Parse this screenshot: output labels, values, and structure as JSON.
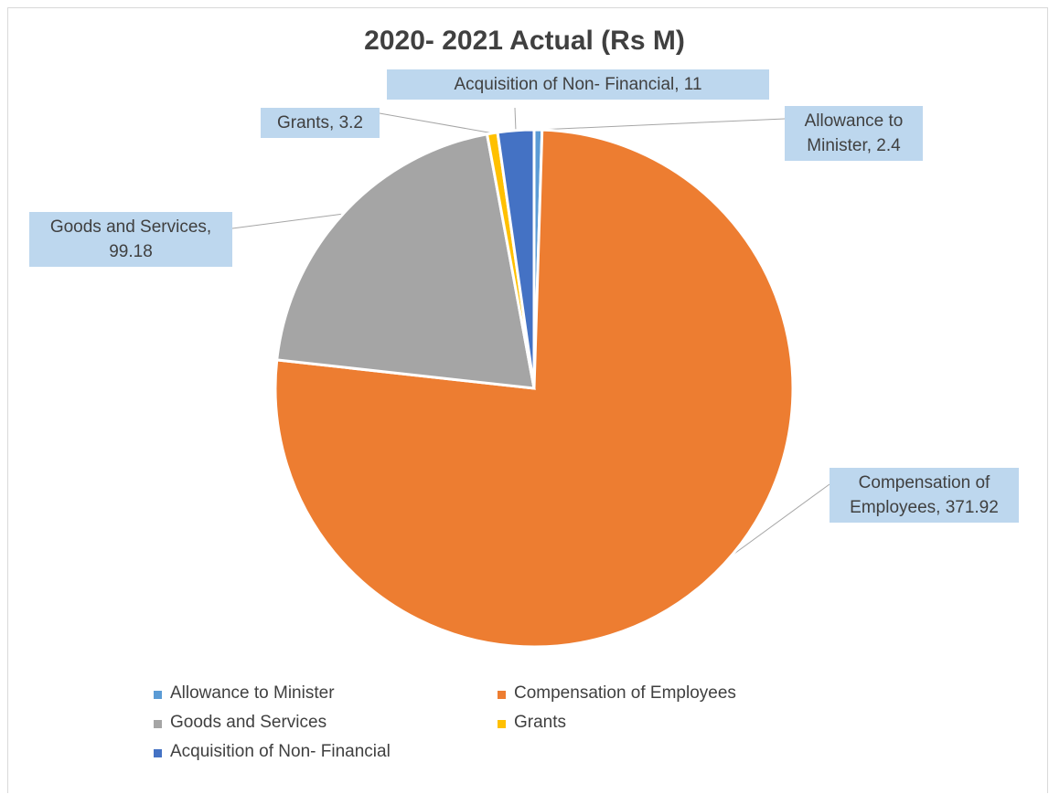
{
  "chart_data": {
    "type": "pie",
    "title": "2020- 2021 Actual (Rs M)",
    "slices": [
      {
        "name": "Allowance to Minister",
        "value": 2.4,
        "color": "#5b9bd5",
        "label": "Allowance to Minister, 2.4"
      },
      {
        "name": "Compensation of Employees",
        "value": 371.92,
        "color": "#ed7d31",
        "label": "Compensation of Employees, 371.92"
      },
      {
        "name": "Goods and Services",
        "value": 99.18,
        "color": "#a5a5a5",
        "label": "Goods and Services, 99.18"
      },
      {
        "name": "Grants",
        "value": 3.2,
        "color": "#ffc000",
        "label": "Grants, 3.2"
      },
      {
        "name": "Acquisition of Non- Financial",
        "value": 11,
        "color": "#4472c4",
        "label": "Acquisition of Non- Financial, 11"
      }
    ],
    "callouts": {
      "allowance": [
        "Allowance to",
        "Minister, 2.4"
      ],
      "compensation": [
        "Compensation of",
        "Employees, 371.92"
      ],
      "goods": [
        "Goods and Services,",
        "99.18"
      ],
      "grants": [
        "Grants, 3.2"
      ],
      "acquisition": [
        "Acquisition of Non- Financial, 11"
      ]
    },
    "legend": {
      "position": "bottom",
      "items": [
        "Allowance to Minister",
        "Compensation of Employees",
        "Goods and Services",
        "Grants",
        "Acquisition of Non- Financial"
      ]
    }
  }
}
